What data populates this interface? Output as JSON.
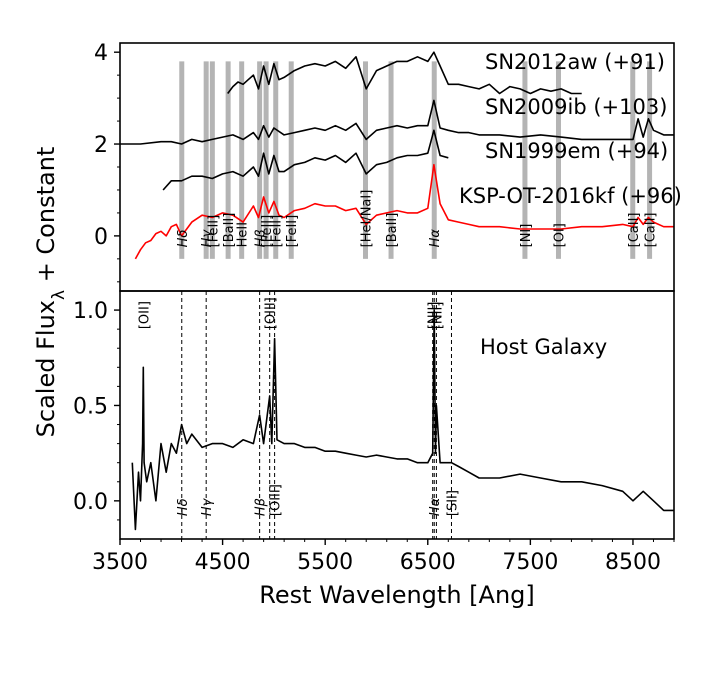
{
  "chart_data": [
    {
      "type": "line",
      "panel": "top",
      "ylabel": "Scaled Flux_λ + Constant",
      "xlim": [
        3500,
        8900
      ],
      "ylim": [
        -1.2,
        4.2
      ],
      "yticks": [
        0,
        2,
        4
      ],
      "series": [
        {
          "name": "SN2012aw (+91)",
          "color": "#000000",
          "x": [
            4550,
            4600,
            4650,
            4700,
            4750,
            4800,
            4850,
            4900,
            4950,
            5000,
            5050,
            5100,
            5200,
            5300,
            5400,
            5500,
            5600,
            5700,
            5800,
            5900,
            6000,
            6100,
            6200,
            6300,
            6400,
            6500,
            6560,
            6620,
            6700,
            6800,
            6900,
            7000,
            7100,
            7200,
            7300,
            7400,
            7500,
            7600,
            7700,
            7800,
            7900,
            8000
          ],
          "y": [
            3.1,
            3.25,
            3.35,
            3.3,
            3.4,
            3.5,
            3.2,
            3.7,
            3.3,
            3.75,
            3.4,
            3.45,
            3.6,
            3.7,
            3.75,
            3.7,
            3.8,
            3.65,
            3.9,
            3.2,
            3.6,
            3.7,
            3.8,
            3.8,
            3.9,
            3.8,
            4.0,
            3.7,
            3.3,
            3.3,
            3.25,
            3.2,
            3.3,
            3.1,
            3.25,
            3.2,
            3.1,
            3.2,
            3.15,
            3.2,
            3.1,
            3.1
          ]
        },
        {
          "name": "SN2009ib (+103)",
          "color": "#000000",
          "x": [
            3500,
            3700,
            3900,
            4000,
            4100,
            4200,
            4300,
            4400,
            4500,
            4600,
            4700,
            4800,
            4850,
            4900,
            4950,
            5000,
            5100,
            5200,
            5300,
            5400,
            5500,
            5600,
            5700,
            5800,
            5900,
            6000,
            6100,
            6200,
            6300,
            6400,
            6500,
            6560,
            6620,
            6700,
            6800,
            6900,
            7000,
            7200,
            7400,
            7600,
            7800,
            8000,
            8200,
            8400,
            8500,
            8550,
            8600,
            8650,
            8700,
            8800,
            8900
          ],
          "y": [
            2.0,
            2.0,
            2.05,
            2.05,
            2.0,
            2.1,
            2.05,
            2.1,
            2.15,
            2.2,
            2.1,
            2.25,
            2.1,
            2.4,
            2.15,
            2.35,
            2.2,
            2.25,
            2.3,
            2.35,
            2.3,
            2.4,
            2.3,
            2.45,
            2.1,
            2.3,
            2.35,
            2.4,
            2.35,
            2.4,
            2.4,
            2.95,
            2.35,
            2.3,
            2.25,
            2.25,
            2.2,
            2.2,
            2.15,
            2.2,
            2.15,
            2.1,
            2.1,
            2.1,
            2.1,
            2.55,
            2.15,
            2.55,
            2.3,
            2.2,
            2.2
          ]
        },
        {
          "name": "SN1999em (+94)",
          "color": "#000000",
          "x": [
            3920,
            4000,
            4100,
            4200,
            4300,
            4400,
            4500,
            4600,
            4700,
            4800,
            4850,
            4900,
            4950,
            5000,
            5050,
            5100,
            5200,
            5300,
            5400,
            5500,
            5600,
            5700,
            5800,
            5900,
            6000,
            6100,
            6200,
            6300,
            6400,
            6500,
            6560,
            6620,
            6700
          ],
          "y": [
            1.0,
            1.2,
            1.2,
            1.3,
            1.3,
            1.25,
            1.35,
            1.4,
            1.3,
            1.5,
            1.3,
            1.8,
            1.35,
            1.75,
            1.4,
            1.4,
            1.55,
            1.6,
            1.7,
            1.65,
            1.75,
            1.6,
            1.8,
            1.35,
            1.55,
            1.6,
            1.7,
            1.75,
            1.75,
            1.8,
            2.3,
            1.75,
            1.7
          ]
        },
        {
          "name": "KSP-OT-2016kf (+96)",
          "color": "#ff0000",
          "x": [
            3650,
            3700,
            3750,
            3800,
            3850,
            3900,
            3950,
            4000,
            4050,
            4100,
            4200,
            4300,
            4400,
            4500,
            4600,
            4700,
            4800,
            4850,
            4900,
            4950,
            5000,
            5050,
            5100,
            5200,
            5300,
            5400,
            5500,
            5600,
            5700,
            5800,
            5900,
            6000,
            6100,
            6200,
            6300,
            6400,
            6500,
            6560,
            6620,
            6700,
            6800,
            6900,
            7000,
            7200,
            7400,
            7600,
            7800,
            8000,
            8200,
            8400,
            8500,
            8550,
            8600,
            8650,
            8700,
            8800,
            8900
          ],
          "y": [
            -0.5,
            -0.3,
            -0.15,
            -0.1,
            0.05,
            0.1,
            0.0,
            0.2,
            0.25,
            0.0,
            0.3,
            0.45,
            0.4,
            0.5,
            0.45,
            0.3,
            0.65,
            0.4,
            0.85,
            0.5,
            0.75,
            0.45,
            0.4,
            0.55,
            0.6,
            0.7,
            0.65,
            0.65,
            0.55,
            0.6,
            0.25,
            0.45,
            0.5,
            0.55,
            0.5,
            0.5,
            0.6,
            1.55,
            0.7,
            0.35,
            0.3,
            0.25,
            0.2,
            0.2,
            0.15,
            0.15,
            0.15,
            0.2,
            0.2,
            0.25,
            0.2,
            0.4,
            0.25,
            0.4,
            0.3,
            0.2,
            0.2
          ]
        }
      ],
      "series_labels": [
        "SN2012aw (+91)",
        "SN2009ib (+103)",
        "SN1999em (+94)",
        "KSP-OT-2016kf (+96)"
      ],
      "line_markers": [
        {
          "x": 4102,
          "label": "Hδ",
          "italic": true
        },
        {
          "x": 4340,
          "label": "Hγ",
          "italic": true
        },
        {
          "x": 4400,
          "label": "[FeII]",
          "italic": false
        },
        {
          "x": 4554,
          "label": "[BaII]",
          "italic": false
        },
        {
          "x": 4686,
          "label": "HeII",
          "italic": false
        },
        {
          "x": 4861,
          "label": "Hβ",
          "italic": true
        },
        {
          "x": 4924,
          "label": "[FeII]",
          "italic": false
        },
        {
          "x": 5018,
          "label": "[FeII]",
          "italic": false
        },
        {
          "x": 5169,
          "label": "[FeII]",
          "italic": false
        },
        {
          "x": 5893,
          "label": "[HeI/NaI]",
          "italic": false
        },
        {
          "x": 6142,
          "label": "[BaII]",
          "italic": false
        },
        {
          "x": 6563,
          "label": "Hα",
          "italic": true
        },
        {
          "x": 7447,
          "label": "[NI]",
          "italic": false
        },
        {
          "x": 7774,
          "label": "[OI]",
          "italic": false
        },
        {
          "x": 8498,
          "label": "[CaII]",
          "italic": false
        },
        {
          "x": 8662,
          "label": "[CaII]",
          "italic": false
        }
      ]
    },
    {
      "type": "line",
      "panel": "bottom",
      "xlabel": "Rest Wavelength [Ang]",
      "xlim": [
        3500,
        8900
      ],
      "ylim": [
        -0.2,
        1.1
      ],
      "xticks": [
        3500,
        4500,
        5500,
        6500,
        7500,
        8500
      ],
      "yticks": [
        0.0,
        0.5,
        1.0
      ],
      "annotation": "Host Galaxy",
      "series": [
        {
          "name": "",
          "color": "#000000",
          "x": [
            3620,
            3650,
            3680,
            3700,
            3720,
            3727,
            3735,
            3760,
            3800,
            3850,
            3900,
            3950,
            4000,
            4050,
            4100,
            4150,
            4200,
            4300,
            4400,
            4500,
            4600,
            4700,
            4800,
            4861,
            4900,
            4959,
            4980,
            5007,
            5030,
            5100,
            5200,
            5300,
            5400,
            5500,
            5600,
            5700,
            5800,
            5900,
            6000,
            6100,
            6200,
            6300,
            6400,
            6500,
            6548,
            6563,
            6575,
            6584,
            6620,
            6700,
            6731,
            6800,
            6900,
            7000,
            7200,
            7400,
            7600,
            7800,
            8000,
            8200,
            8400,
            8500,
            8600,
            8700,
            8800,
            8900
          ],
          "y": [
            0.2,
            -0.15,
            0.15,
            0.0,
            0.3,
            0.7,
            0.2,
            0.1,
            0.2,
            0.0,
            0.3,
            0.15,
            0.3,
            0.25,
            0.4,
            0.3,
            0.35,
            0.28,
            0.3,
            0.3,
            0.28,
            0.32,
            0.3,
            0.45,
            0.3,
            0.55,
            0.3,
            0.85,
            0.32,
            0.3,
            0.3,
            0.28,
            0.28,
            0.26,
            0.26,
            0.25,
            0.24,
            0.23,
            0.24,
            0.23,
            0.22,
            0.22,
            0.2,
            0.2,
            0.25,
            1.0,
            0.25,
            0.5,
            0.2,
            0.2,
            0.2,
            0.18,
            0.15,
            0.12,
            0.12,
            0.14,
            0.12,
            0.1,
            0.1,
            0.08,
            0.05,
            0.0,
            0.05,
            0.0,
            -0.05,
            -0.05
          ]
        }
      ],
      "line_markers": [
        {
          "x": 3727,
          "label": "[OII]",
          "side": "top",
          "italic": false
        },
        {
          "x": 4102,
          "label": "Hδ",
          "side": "bottom",
          "italic": true
        },
        {
          "x": 4340,
          "label": "Hγ",
          "side": "bottom",
          "italic": true
        },
        {
          "x": 4861,
          "label": "Hβ",
          "side": "bottom",
          "italic": true
        },
        {
          "x": 4959,
          "label": "[OIII]",
          "side": "top",
          "italic": false
        },
        {
          "x": 5007,
          "label": "[OIII]",
          "side": "bottom",
          "italic": false
        },
        {
          "x": 6548,
          "label": "[NII]",
          "side": "top",
          "italic": false
        },
        {
          "x": 6563,
          "label": "Hα",
          "side": "bottom",
          "italic": true
        },
        {
          "x": 6584,
          "label": "[NII]",
          "side": "top",
          "italic": false
        },
        {
          "x": 6731,
          "label": "[SII]",
          "side": "bottom",
          "italic": false
        }
      ]
    }
  ]
}
